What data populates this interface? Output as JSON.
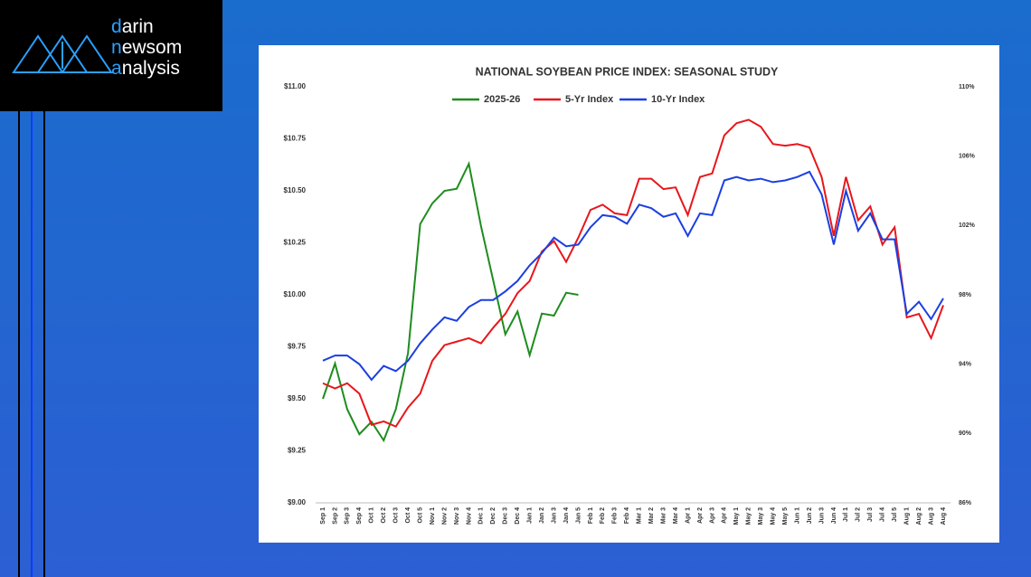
{
  "logo": [
    "darin",
    "newsom",
    "analysis"
  ],
  "chart_data": {
    "type": "line",
    "title": "NATIONAL SOYBEAN PRICE INDEX: SEASONAL STUDY",
    "categories": [
      "Sep 1",
      "Sep 2",
      "Sep 3",
      "Sep 4",
      "Oct 1",
      "Oct 2",
      "Oct 3",
      "Oct 4",
      "Oct 5",
      "Nov 1",
      "Nov 2",
      "Nov 3",
      "Nov 4",
      "Dec 1",
      "Dec 2",
      "Dec 3",
      "Dec 4",
      "Jan 1",
      "Jan 2",
      "Jan 3",
      "Jan 4",
      "Jan 5",
      "Feb 1",
      "Feb 2",
      "Feb 3",
      "Feb 4",
      "Mar 1",
      "Mar 2",
      "Mar 3",
      "Mar 4",
      "Apr 1",
      "Apr 2",
      "Apr 3",
      "Apr 4",
      "May 1",
      "May 2",
      "May 3",
      "May 4",
      "May 5",
      "Jun 1",
      "Jun 2",
      "Jun 3",
      "Jun 4",
      "Jul 1",
      "Jul 2",
      "Jul 3",
      "Jul 4",
      "Jul 5",
      "Aug 1",
      "Aug 2",
      "Aug 3",
      "Aug 4"
    ],
    "series": [
      {
        "name": "2025-26",
        "color": "#1e8c1e",
        "values": [
          9.5,
          9.67,
          9.45,
          9.33,
          9.39,
          9.3,
          9.45,
          9.72,
          10.34,
          10.44,
          10.5,
          10.51,
          10.63,
          10.33,
          10.07,
          9.81,
          9.92,
          9.71,
          9.91,
          9.9,
          10.01,
          10.0,
          null,
          null,
          null,
          null,
          null,
          null,
          null,
          null,
          null,
          null,
          null,
          null,
          null,
          null,
          null,
          null,
          null,
          null,
          null,
          null,
          null,
          null,
          null,
          null,
          null,
          null,
          null,
          null,
          null,
          null
        ]
      },
      {
        "name": "5-Yr Index",
        "color": "#e8161b",
        "axis": "y2",
        "values": [
          92.9,
          92.6,
          92.9,
          92.3,
          90.5,
          90.7,
          90.4,
          91.5,
          92.3,
          94.2,
          95.1,
          95.3,
          95.5,
          95.2,
          96.1,
          96.9,
          98.1,
          98.8,
          100.5,
          101.1,
          99.9,
          101.3,
          102.9,
          103.2,
          102.7,
          102.6,
          104.7,
          104.7,
          104.1,
          104.2,
          102.6,
          104.8,
          105.0,
          107.2,
          107.9,
          108.1,
          107.7,
          106.7,
          106.6,
          106.7,
          106.5,
          104.8,
          101.4,
          104.8,
          102.3,
          103.1,
          100.9,
          101.9,
          96.7,
          96.9,
          95.5,
          97.4
        ]
      },
      {
        "name": "10-Yr Index",
        "color": "#1c3fe0",
        "axis": "y2",
        "values": [
          94.2,
          94.5,
          94.5,
          94.0,
          93.1,
          93.9,
          93.6,
          94.2,
          95.2,
          96.0,
          96.7,
          96.5,
          97.3,
          97.7,
          97.7,
          98.2,
          98.8,
          99.7,
          100.4,
          101.3,
          100.8,
          100.9,
          101.9,
          102.6,
          102.5,
          102.1,
          103.2,
          103.0,
          102.5,
          102.7,
          101.4,
          102.7,
          102.6,
          104.6,
          104.8,
          104.6,
          104.7,
          104.5,
          104.6,
          104.8,
          105.1,
          103.8,
          100.9,
          104.0,
          101.7,
          102.7,
          101.2,
          101.2,
          96.9,
          97.6,
          96.6,
          97.8
        ]
      }
    ],
    "ylim": [
      9,
      11
    ],
    "yticks": [
      {
        "value": 9,
        "label": "$9.00"
      },
      {
        "value": 9.25,
        "label": "$9.25"
      },
      {
        "value": 9.5,
        "label": "$9.50"
      },
      {
        "value": 9.75,
        "label": "$9.75"
      },
      {
        "value": 10,
        "label": "$10.00"
      },
      {
        "value": 10.25,
        "label": "$10.25"
      },
      {
        "value": 10.5,
        "label": "$10.50"
      },
      {
        "value": 10.75,
        "label": "$10.75"
      },
      {
        "value": 11,
        "label": "$11.00"
      }
    ],
    "y2lim": [
      86,
      110
    ],
    "y2ticks": [
      {
        "value": 86,
        "label": "86%"
      },
      {
        "value": 90,
        "label": "90%"
      },
      {
        "value": 94,
        "label": "94%"
      },
      {
        "value": 98,
        "label": "98%"
      },
      {
        "value": 102,
        "label": "102%"
      },
      {
        "value": 106,
        "label": "106%"
      },
      {
        "value": 110,
        "label": "110%"
      }
    ],
    "legend": "top",
    "grid": false
  }
}
